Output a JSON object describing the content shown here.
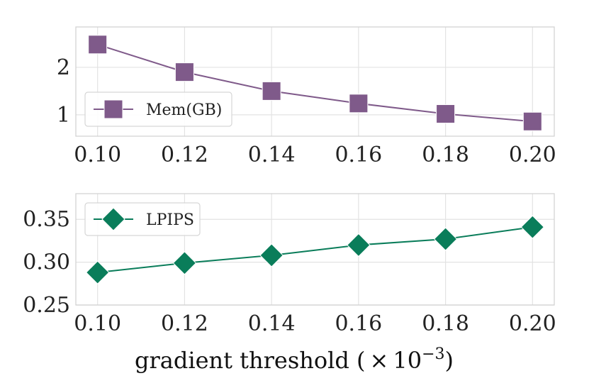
{
  "chart_data": [
    {
      "type": "line",
      "x": [
        0.1,
        0.12,
        0.14,
        0.16,
        0.18,
        0.2
      ],
      "xtick_labels": [
        "0.10",
        "0.12",
        "0.14",
        "0.16",
        "0.18",
        "0.20"
      ],
      "ytick_values": [
        1,
        2
      ],
      "ytick_labels": [
        "1",
        "2"
      ],
      "xlim": [
        0.095,
        0.205
      ],
      "ylim": [
        0.55,
        2.85
      ],
      "grid": true,
      "legend_position": "middle-left",
      "series": [
        {
          "name": "Mem(GB)",
          "marker": "square",
          "color": "#7f5a8a",
          "values": [
            2.48,
            1.9,
            1.5,
            1.24,
            1.02,
            0.86
          ]
        }
      ]
    },
    {
      "type": "line",
      "x": [
        0.1,
        0.12,
        0.14,
        0.16,
        0.18,
        0.2
      ],
      "xtick_labels": [
        "0.10",
        "0.12",
        "0.14",
        "0.16",
        "0.18",
        "0.20"
      ],
      "ytick_values": [
        0.25,
        0.3,
        0.35
      ],
      "ytick_labels": [
        "0.25",
        "0.30",
        "0.35"
      ],
      "xlim": [
        0.095,
        0.205
      ],
      "ylim": [
        0.25,
        0.38
      ],
      "grid": true,
      "legend_position": "top-left",
      "series": [
        {
          "name": "LPIPS",
          "marker": "diamond",
          "color": "#0a7d5a",
          "values": [
            0.288,
            0.299,
            0.308,
            0.32,
            0.327,
            0.341
          ]
        }
      ]
    }
  ],
  "xlabel": {
    "prefix": "gradient threshold (",
    "times": "×",
    "base": "10",
    "exponent": "−3",
    "suffix": ")"
  }
}
